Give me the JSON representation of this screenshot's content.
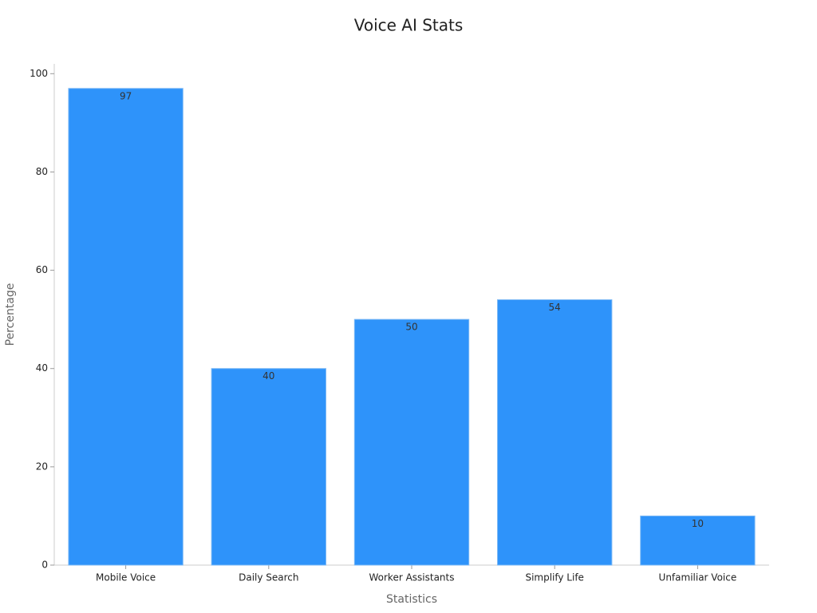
{
  "chart_data": {
    "type": "bar",
    "title": "Voice AI Stats",
    "x_label": "Statistics",
    "y_label": "Percentage",
    "categories": [
      "Mobile Voice",
      "Daily Search",
      "Worker Assistants",
      "Simplify Life",
      "Unfamiliar Voice"
    ],
    "values": [
      97,
      40,
      50,
      54,
      10
    ],
    "color": "#2e93fa",
    "ylim": [
      0,
      102
    ],
    "yticks": [
      0,
      20,
      40,
      60,
      80,
      100
    ],
    "grid": false
  }
}
